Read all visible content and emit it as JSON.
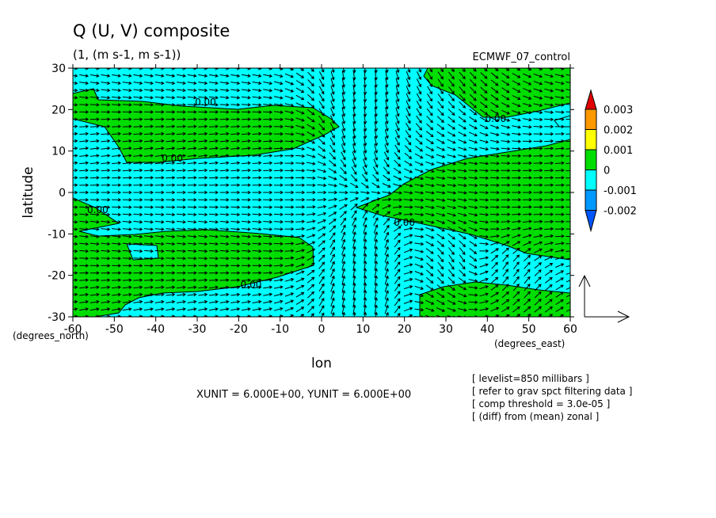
{
  "chart_data": {
    "type": "vector-contour",
    "title": "Q (U, V) composite",
    "subtitle": "(1, (m s-1, m s-1))",
    "dataset": "ECMWF_07_control",
    "xlabel": "lon",
    "ylabel": "latitude",
    "x_unit_label": "(degrees_east)",
    "y_unit_label": "(degrees_north)",
    "xlim": [
      -60,
      60
    ],
    "ylim": [
      -30,
      30
    ],
    "x_ticks": [
      -60,
      -50,
      -40,
      -30,
      -20,
      -10,
      0,
      10,
      20,
      30,
      40,
      50,
      60
    ],
    "y_ticks": [
      -30,
      -20,
      -10,
      0,
      10,
      20,
      30
    ],
    "x_tick_labels": [
      "-60",
      "-50",
      "-40",
      "-30",
      "-20",
      "-10",
      "0",
      "10",
      "20",
      "30",
      "40",
      "50",
      "60"
    ],
    "y_tick_labels": [
      "-30",
      "-20",
      "-10",
      "0",
      "10",
      "20",
      "30"
    ],
    "contour_labels": [
      {
        "text": "0.00",
        "lon": -28,
        "lat": 21
      },
      {
        "text": "0.00",
        "lon": -36,
        "lat": 7.5
      },
      {
        "text": "0.00",
        "lon": 42,
        "lat": 17
      },
      {
        "text": "0.00",
        "lon": -54,
        "lat": -5
      },
      {
        "text": "0.00",
        "lon": 20,
        "lat": -8
      },
      {
        "text": "0.00",
        "lon": -17,
        "lat": -23
      }
    ],
    "colorbar": {
      "levels": [
        "0.003",
        "0.002",
        "0.001",
        "0",
        "-0.001",
        "-0.002"
      ],
      "colors": [
        "#e00000",
        "#ff9900",
        "#ffff00",
        "#00dd00",
        "#00ffff",
        "#0099ff",
        "#0055ff"
      ]
    },
    "fill_colors": {
      "positive": "#00dd00",
      "negative": "#00ffff"
    },
    "xunit_note": "XUNIT = 6.000E+00, YUNIT = 6.000E+00",
    "annotations": [
      "[ levelist=850 millibars ]",
      "[ refer to grav spct filtering data ]",
      "[ comp threshold = 3.0e-05 ]",
      "[ (diff) from (mean) zonal ]"
    ]
  }
}
